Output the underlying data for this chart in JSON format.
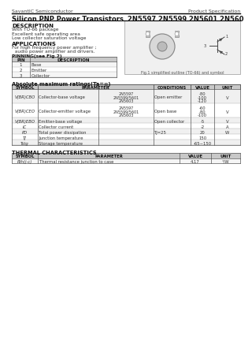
{
  "header_left": "SavantIC Semiconductor",
  "header_right": "Product Specification",
  "title_left": "Silicon PNP Power Transistors",
  "title_right": "2N5597 2N5599 2N5601 2N5603",
  "description_title": "DESCRIPTION",
  "description_items": [
    "With TO-66 package",
    "Excellent safe operating area",
    "Low collector saturation voltage"
  ],
  "applications_title": "APPLICATIONS",
  "applications_items": [
    "For high frequency power amplifier ;",
    "  audio power amplifier and drivers."
  ],
  "pinning_title": "PINNING(see Fig.2)",
  "pin_headers": [
    "PIN",
    "DESCRIPTION"
  ],
  "pin_rows": [
    [
      "1",
      "Base"
    ],
    [
      "2",
      "Emitter"
    ],
    [
      "3",
      "Collector"
    ]
  ],
  "fig_caption": "Fig.1 simplified outline (TO-66) and symbol",
  "abs_title": "Absolute maximum ratings(Ta=∞)",
  "abs_col_headers": [
    "SYMBOL",
    "PARAMETER",
    "CONDITIONS",
    "VALUE",
    "UNIT"
  ],
  "thermal_title": "THERMAL CHARACTERISTICS",
  "thermal_col_headers": [
    "SYMBOL",
    "PARAMETER",
    "VALUE",
    "UNIT"
  ],
  "bg_color": "#ffffff",
  "text_color": "#333333"
}
